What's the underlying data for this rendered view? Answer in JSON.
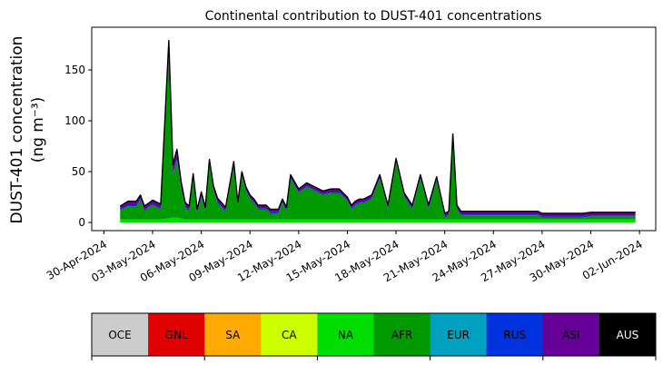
{
  "chart_data": {
    "type": "area",
    "title": "Continental contribution to DUST-401 concentrations",
    "ylabel_line1": "DUST-401 concentration",
    "ylabel_line2": "(ng m⁻³)",
    "xlabel": "",
    "ylim": [
      -8,
      192
    ],
    "xlim": [
      "2024-04-29T06:00",
      "2024-06-03T00:00"
    ],
    "x_ticks": [
      "30-Apr-2024",
      "03-May-2024",
      "06-May-2024",
      "09-May-2024",
      "12-May-2024",
      "15-May-2024",
      "18-May-2024",
      "21-May-2024",
      "24-May-2024",
      "27-May-2024",
      "30-May-2024",
      "02-Jun-2024"
    ],
    "y_ticks": [
      0,
      50,
      100,
      150
    ],
    "grid": false,
    "legend_position": "bottom colorbar",
    "stack_order": [
      "OCE",
      "GNL",
      "SA",
      "CA",
      "NA",
      "AFR",
      "EUR",
      "RUS",
      "ASI",
      "AUS"
    ],
    "x": [
      "2024-05-01T00:00",
      "2024-05-01T12:00",
      "2024-05-02T00:00",
      "2024-05-02T06:00",
      "2024-05-02T12:00",
      "2024-05-02T18:00",
      "2024-05-03T00:00",
      "2024-05-03T12:00",
      "2024-05-04T00:00",
      "2024-05-04T06:00",
      "2024-05-04T12:00",
      "2024-05-04T18:00",
      "2024-05-05T00:00",
      "2024-05-05T06:00",
      "2024-05-05T12:00",
      "2024-05-05T18:00",
      "2024-05-06T00:00",
      "2024-05-06T06:00",
      "2024-05-06T12:00",
      "2024-05-06T18:00",
      "2024-05-07T00:00",
      "2024-05-07T12:00",
      "2024-05-08T00:00",
      "2024-05-08T06:00",
      "2024-05-08T12:00",
      "2024-05-08T18:00",
      "2024-05-09T00:00",
      "2024-05-09T06:00",
      "2024-05-09T12:00",
      "2024-05-10T00:00",
      "2024-05-10T06:00",
      "2024-05-10T12:00",
      "2024-05-10T18:00",
      "2024-05-11T00:00",
      "2024-05-11T06:00",
      "2024-05-11T12:00",
      "2024-05-12T00:00",
      "2024-05-12T12:00",
      "2024-05-13T00:00",
      "2024-05-13T12:00",
      "2024-05-14T00:00",
      "2024-05-14T12:00",
      "2024-05-15T00:00",
      "2024-05-15T06:00",
      "2024-05-15T12:00",
      "2024-05-15T18:00",
      "2024-05-16T00:00",
      "2024-05-16T12:00",
      "2024-05-17T00:00",
      "2024-05-17T12:00",
      "2024-05-18T00:00",
      "2024-05-18T12:00",
      "2024-05-19T00:00",
      "2024-05-19T12:00",
      "2024-05-20T00:00",
      "2024-05-20T12:00",
      "2024-05-21T00:00",
      "2024-05-21T06:00",
      "2024-05-21T12:00",
      "2024-05-21T18:00",
      "2024-05-22T00:00",
      "2024-05-22T12:00",
      "2024-05-23T00:00",
      "2024-05-23T12:00",
      "2024-05-24T00:00",
      "2024-05-24T12:00",
      "2024-05-25T00:00",
      "2024-05-25T12:00",
      "2024-05-26T00:00",
      "2024-05-26T12:00",
      "2024-05-26T18:00",
      "2024-05-27T00:00",
      "2024-05-27T06:00",
      "2024-05-27T12:00",
      "2024-05-27T18:00",
      "2024-05-28T00:00",
      "2024-05-28T12:00",
      "2024-05-29T00:00",
      "2024-05-29T12:00",
      "2024-05-30T00:00",
      "2024-05-30T12:00",
      "2024-05-31T00:00",
      "2024-05-31T12:00",
      "2024-05-31T18:00",
      "2024-06-01T00:00",
      "2024-06-01T06:00",
      "2024-06-01T12:00",
      "2024-06-01T18:00"
    ],
    "series": [
      {
        "name": "OCE",
        "color": "#cccccc",
        "values": [
          0,
          0,
          0,
          0,
          0,
          0,
          0,
          0,
          0,
          0,
          0,
          0,
          0,
          0,
          0,
          0,
          0,
          0,
          0,
          0,
          0,
          0,
          0,
          0,
          0,
          0,
          0,
          0,
          0,
          0,
          0,
          0,
          0,
          0,
          0,
          0,
          0,
          0,
          0,
          0,
          0,
          0,
          0,
          0,
          0,
          0,
          0,
          0,
          0,
          0,
          0,
          0,
          0,
          0,
          0,
          0,
          0,
          0,
          0,
          0,
          0,
          0,
          0,
          0,
          0,
          0,
          0,
          0,
          0,
          0,
          0,
          0,
          0,
          0,
          0,
          0,
          0,
          0,
          0,
          0,
          0,
          0,
          0,
          0,
          0,
          0,
          0,
          0
        ]
      },
      {
        "name": "GNL",
        "color": "#e00000",
        "values": [
          0,
          0,
          0,
          0,
          0,
          0,
          0,
          0,
          0,
          0,
          0,
          0,
          0,
          0,
          0,
          0,
          0,
          0,
          0,
          0,
          0,
          0,
          0,
          0,
          0,
          0,
          0,
          0,
          0,
          0,
          0,
          0,
          0,
          0,
          0,
          0,
          0,
          0,
          0,
          0,
          0,
          0,
          0,
          0,
          0,
          0,
          0,
          0,
          0,
          0,
          0,
          0,
          0,
          0,
          0,
          0,
          0,
          0,
          0,
          0,
          0,
          0,
          0,
          0,
          0,
          0,
          0,
          0,
          0,
          0,
          0,
          0,
          0,
          0,
          0,
          0,
          0,
          0,
          0,
          0,
          0,
          0,
          0,
          0,
          0,
          0,
          0,
          0
        ]
      },
      {
        "name": "SA",
        "color": "#ffaa00",
        "values": [
          0,
          0,
          0,
          0,
          0,
          0,
          0,
          0,
          0,
          0,
          0,
          0,
          0,
          0,
          0,
          0,
          0,
          0,
          0,
          0,
          0,
          0,
          0,
          0,
          0,
          0,
          0,
          0,
          0,
          0,
          0,
          0,
          0,
          0,
          0,
          0,
          0,
          0,
          0,
          0,
          0,
          0,
          0,
          0,
          0,
          0,
          0,
          0,
          0,
          0,
          0,
          0,
          0,
          0,
          0,
          0,
          0,
          0,
          0,
          0,
          0,
          0,
          0,
          0,
          0,
          0,
          0,
          0,
          0,
          0,
          0,
          0,
          0,
          0,
          0,
          0,
          0,
          0,
          0,
          0,
          0,
          0,
          0,
          0,
          0,
          0,
          0,
          0
        ]
      },
      {
        "name": "CA",
        "color": "#ccff00",
        "values": [
          0,
          0,
          0,
          0,
          0,
          0,
          0,
          0,
          0,
          0,
          0,
          0,
          0,
          0,
          0,
          0,
          0,
          0,
          0,
          0,
          0,
          0,
          0,
          0,
          0,
          0,
          0,
          0,
          0,
          0,
          0,
          0,
          0,
          0,
          0,
          0,
          0,
          0,
          0,
          0,
          0,
          0,
          0,
          0,
          0,
          0,
          0,
          0,
          0,
          0,
          0,
          0,
          0,
          0,
          0,
          0,
          0,
          0,
          0,
          0,
          0,
          0,
          0,
          0,
          0,
          0,
          0,
          0,
          0,
          0,
          0,
          0,
          0,
          0,
          0,
          0,
          0,
          0,
          0,
          0,
          0,
          0,
          0,
          0,
          0,
          0,
          0,
          0
        ]
      },
      {
        "name": "NA",
        "color": "#00dd00",
        "values": [
          3,
          3,
          3,
          3,
          3,
          3,
          3,
          3,
          4,
          5,
          5,
          4,
          3,
          3,
          3,
          3,
          3,
          3,
          3,
          3,
          3,
          3,
          3,
          3,
          3,
          3,
          3,
          3,
          3,
          3,
          3,
          3,
          3,
          3,
          3,
          3,
          3,
          3,
          3,
          3,
          3,
          3,
          3,
          3,
          3,
          3,
          3,
          3,
          3,
          3,
          3,
          3,
          3,
          3,
          3,
          3,
          3,
          3,
          3,
          3,
          3,
          3,
          3,
          3,
          3,
          3,
          3,
          3,
          3,
          3,
          3,
          3,
          3,
          3,
          3,
          3,
          3,
          3,
          3,
          3,
          3,
          3,
          3,
          3,
          3,
          3,
          3,
          3
        ]
      },
      {
        "name": "AFR",
        "color": "#009900",
        "values": [
          9,
          13,
          13,
          19,
          8,
          12,
          14,
          10,
          160,
          42,
          56,
          30,
          12,
          8,
          40,
          6,
          22,
          8,
          54,
          28,
          16,
          8,
          52,
          13,
          42,
          28,
          20,
          16,
          10,
          10,
          6,
          6,
          6,
          16,
          8,
          40,
          26,
          32,
          28,
          24,
          26,
          26,
          18,
          10,
          14,
          16,
          16,
          20,
          40,
          10,
          56,
          22,
          10,
          40,
          10,
          38,
          2,
          4,
          80,
          10,
          4,
          4,
          4,
          4,
          4,
          4,
          4,
          4,
          4,
          4,
          4,
          2,
          2,
          2,
          2,
          2,
          2,
          2,
          2,
          3,
          3,
          3,
          3,
          3,
          3,
          3,
          3,
          3
        ]
      },
      {
        "name": "EUR",
        "color": "#00a0c0",
        "values": [
          0,
          0,
          0,
          0,
          0,
          0,
          0,
          0,
          0,
          0,
          0,
          0,
          0,
          0,
          0,
          0,
          0,
          0,
          0,
          0,
          0,
          0,
          0,
          0,
          0,
          0,
          0,
          0,
          0,
          0,
          0,
          0,
          0,
          0,
          0,
          0,
          0,
          0,
          0,
          0,
          0,
          0,
          0,
          0,
          0,
          0,
          0,
          0,
          0,
          0,
          0,
          0,
          0,
          0,
          0,
          0,
          0,
          0,
          0,
          0,
          0,
          0,
          0,
          0,
          0,
          0,
          0,
          0,
          0,
          0,
          0,
          0,
          0,
          0,
          0,
          0,
          0,
          0,
          0,
          0,
          0,
          0,
          0,
          0,
          0,
          0,
          0,
          0
        ]
      },
      {
        "name": "RUS",
        "color": "#0033dd",
        "values": [
          1,
          1,
          1,
          1,
          1,
          1,
          1,
          1,
          2,
          2,
          2,
          1,
          1,
          1,
          1,
          1,
          1,
          1,
          1,
          1,
          1,
          1,
          1,
          1,
          1,
          1,
          1,
          1,
          1,
          1,
          1,
          1,
          1,
          1,
          1,
          1,
          1,
          1,
          1,
          1,
          1,
          1,
          1,
          1,
          1,
          1,
          1,
          1,
          1,
          1,
          1,
          1,
          1,
          1,
          1,
          1,
          1,
          1,
          1,
          1,
          1,
          1,
          1,
          1,
          1,
          1,
          1,
          1,
          1,
          1,
          1,
          1,
          1,
          1,
          1,
          1,
          1,
          1,
          1,
          1,
          1,
          1,
          1,
          1,
          1,
          1,
          1,
          1
        ]
      },
      {
        "name": "ASI",
        "color": "#660099",
        "values": [
          3,
          4,
          4,
          4,
          4,
          3,
          4,
          4,
          13,
          8,
          9,
          6,
          4,
          4,
          4,
          3,
          4,
          3,
          4,
          4,
          4,
          3,
          4,
          3,
          4,
          3,
          3,
          3,
          3,
          3,
          3,
          3,
          3,
          3,
          3,
          3,
          3,
          3,
          3,
          3,
          3,
          3,
          3,
          3,
          3,
          3,
          3,
          3,
          3,
          3,
          3,
          3,
          3,
          3,
          3,
          3,
          3,
          3,
          3,
          3,
          3,
          3,
          3,
          3,
          3,
          3,
          3,
          3,
          3,
          3,
          3,
          3,
          3,
          3,
          3,
          3,
          3,
          3,
          3,
          3,
          3,
          3,
          3,
          3,
          3,
          3,
          3,
          3
        ]
      },
      {
        "name": "AUS",
        "color": "#000000",
        "values": [
          0,
          0,
          0,
          0,
          0,
          0,
          0,
          0,
          0,
          0,
          0,
          0,
          0,
          0,
          0,
          0,
          0,
          0,
          0,
          0,
          0,
          0,
          0,
          0,
          0,
          0,
          0,
          0,
          0,
          0,
          0,
          0,
          0,
          0,
          0,
          0,
          0,
          0,
          0,
          0,
          0,
          0,
          0,
          0,
          0,
          0,
          0,
          0,
          0,
          0,
          0,
          0,
          0,
          0,
          0,
          0,
          0,
          0,
          0,
          0,
          0,
          0,
          0,
          0,
          0,
          0,
          0,
          0,
          0,
          0,
          0,
          0,
          0,
          0,
          0,
          0,
          0,
          0,
          0,
          0,
          0,
          0,
          0,
          0,
          0,
          0,
          0,
          0
        ]
      }
    ],
    "total": [
      16,
      21,
      21,
      27,
      16,
      19,
      22,
      18,
      179,
      57,
      72,
      41,
      20,
      16,
      48,
      13,
      30,
      15,
      62,
      36,
      24,
      15,
      60,
      20,
      50,
      35,
      27,
      23,
      17,
      17,
      13,
      13,
      13,
      23,
      15,
      47,
      33,
      39,
      35,
      31,
      33,
      33,
      25,
      17,
      21,
      23,
      23,
      27,
      47,
      17,
      63,
      29,
      17,
      47,
      17,
      45,
      9,
      11,
      87,
      17,
      11,
      11,
      11,
      11,
      11,
      11,
      11,
      11,
      11,
      11,
      11,
      9,
      9,
      9,
      9,
      9,
      9,
      9,
      9,
      10,
      10,
      10,
      10,
      10,
      10,
      10,
      10,
      10
    ]
  },
  "legend": {
    "entries": [
      {
        "label": "OCE",
        "color": "#cccccc",
        "text_color": "#000000"
      },
      {
        "label": "GNL",
        "color": "#e00000",
        "text_color": "#000000"
      },
      {
        "label": "SA",
        "color": "#ffaa00",
        "text_color": "#000000"
      },
      {
        "label": "CA",
        "color": "#ccff00",
        "text_color": "#000000"
      },
      {
        "label": "NA",
        "color": "#00dd00",
        "text_color": "#000000"
      },
      {
        "label": "AFR",
        "color": "#009900",
        "text_color": "#000000"
      },
      {
        "label": "EUR",
        "color": "#00a0c0",
        "text_color": "#000000"
      },
      {
        "label": "RUS",
        "color": "#0033dd",
        "text_color": "#000000"
      },
      {
        "label": "ASI",
        "color": "#660099",
        "text_color": "#000000"
      },
      {
        "label": "AUS",
        "color": "#000000",
        "text_color": "#ffffff"
      }
    ]
  }
}
